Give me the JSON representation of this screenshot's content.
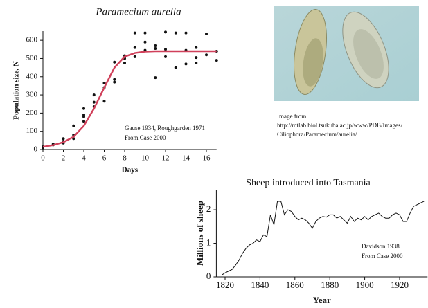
{
  "chart_data": [
    {
      "type": "scatter",
      "title": "Paramecium aurelia",
      "xlabel": "Days",
      "ylabel": "Population size, N",
      "annotation": [
        "Gause 1934, Roughgarden 1971",
        "From Case 2000"
      ],
      "xlim": [
        0,
        17
      ],
      "ylim": [
        0,
        650
      ],
      "xticks": [
        0,
        2,
        4,
        6,
        8,
        10,
        12,
        14,
        16
      ],
      "yticks": [
        0,
        100,
        200,
        300,
        400,
        500,
        600
      ],
      "series": [
        {
          "type": "scatter",
          "color": "#111111",
          "x": [
            0,
            0,
            1,
            1,
            2,
            2,
            2,
            3,
            3,
            3,
            4,
            4,
            4,
            4,
            5,
            5,
            5,
            6,
            6,
            6,
            7,
            7,
            7,
            8,
            8,
            8,
            9,
            9,
            9,
            10,
            10,
            10,
            11,
            11,
            11,
            12,
            12,
            12,
            13,
            13,
            14,
            14,
            14,
            15,
            15,
            15,
            16,
            16,
            17,
            17
          ],
          "values": [
            15,
            10,
            30,
            25,
            60,
            45,
            35,
            130,
            80,
            60,
            225,
            180,
            155,
            190,
            300,
            260,
            235,
            365,
            340,
            265,
            385,
            370,
            480,
            515,
            500,
            475,
            640,
            560,
            510,
            640,
            590,
            545,
            555,
            570,
            395,
            645,
            550,
            510,
            640,
            450,
            640,
            545,
            470,
            560,
            505,
            475,
            635,
            520,
            540,
            490
          ]
        },
        {
          "type": "line",
          "color": "#d0405a",
          "x": [
            0,
            1,
            2,
            3,
            4,
            5,
            6,
            7,
            8,
            9,
            10,
            11,
            12,
            13,
            14,
            15,
            16,
            17
          ],
          "values": [
            15,
            24,
            40,
            70,
            130,
            225,
            340,
            450,
            510,
            530,
            538,
            540,
            540,
            540,
            540,
            540,
            540,
            540
          ]
        }
      ]
    },
    {
      "type": "line",
      "title": "Sheep introduced into Tasmania",
      "xlabel": "Year",
      "ylabel": "Millions of sheep",
      "annotation": [
        "Davidson 1938",
        "From Case 2000"
      ],
      "xlim": [
        1815,
        1936
      ],
      "ylim": [
        0,
        2.6
      ],
      "xticks": [
        1820,
        1840,
        1860,
        1880,
        1900,
        1920
      ],
      "yticks": [
        0,
        1,
        2
      ],
      "series": [
        {
          "type": "line",
          "color": "#111111",
          "x": [
            1818,
            1820,
            1822,
            1824,
            1826,
            1828,
            1830,
            1832,
            1834,
            1836,
            1838,
            1840,
            1842,
            1844,
            1846,
            1848,
            1850,
            1852,
            1854,
            1856,
            1858,
            1860,
            1862,
            1864,
            1866,
            1868,
            1870,
            1872,
            1874,
            1876,
            1878,
            1880,
            1882,
            1884,
            1886,
            1888,
            1890,
            1892,
            1894,
            1896,
            1898,
            1900,
            1902,
            1904,
            1906,
            1908,
            1910,
            1912,
            1914,
            1916,
            1918,
            1920,
            1922,
            1924,
            1926,
            1928,
            1930,
            1932,
            1934
          ],
          "values": [
            0.05,
            0.12,
            0.17,
            0.22,
            0.35,
            0.5,
            0.7,
            0.85,
            0.95,
            1.0,
            1.1,
            1.05,
            1.25,
            1.2,
            1.85,
            1.55,
            2.25,
            2.25,
            1.85,
            2.0,
            1.95,
            1.8,
            1.7,
            1.75,
            1.7,
            1.6,
            1.45,
            1.65,
            1.75,
            1.8,
            1.78,
            1.85,
            1.85,
            1.75,
            1.8,
            1.7,
            1.6,
            1.8,
            1.65,
            1.75,
            1.7,
            1.8,
            1.7,
            1.8,
            1.85,
            1.9,
            1.8,
            1.75,
            1.75,
            1.85,
            1.9,
            1.85,
            1.65,
            1.65,
            1.9,
            2.1,
            2.15,
            2.2,
            2.25
          ]
        }
      ]
    }
  ],
  "image_caption": [
    "Image from",
    "http://mtlab.biol.tsukuba.ac.jp/www/PDB/Images/",
    "Ciliophora/Paramecium/aurelia/"
  ]
}
